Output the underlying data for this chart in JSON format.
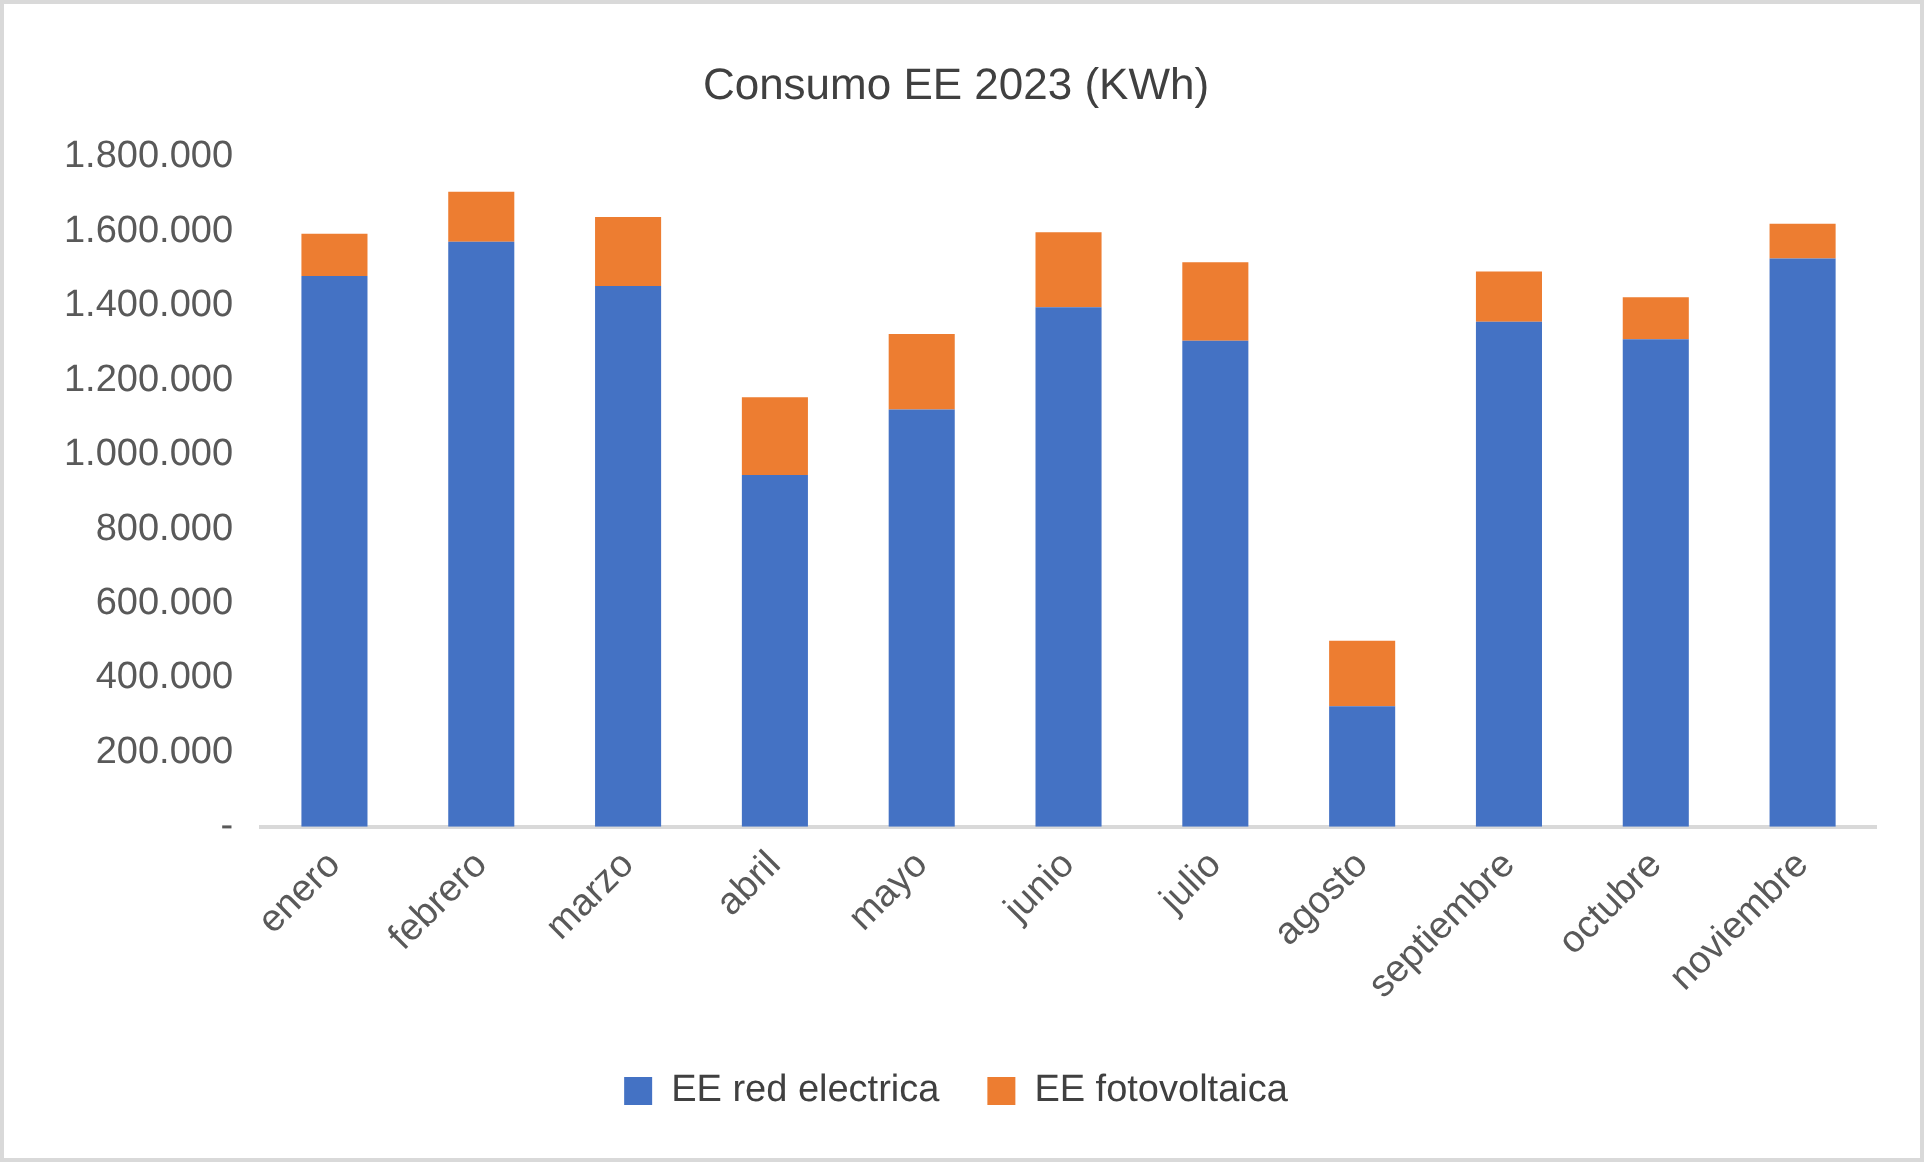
{
  "chart_data": {
    "type": "bar",
    "title": "Consumo EE 2023 (KWh)",
    "categories": [
      "enero",
      "febrero",
      "marzo",
      "abril",
      "mayo",
      "junio",
      "julio",
      "agosto",
      "septiembre",
      "octubre",
      "noviembre"
    ],
    "series": [
      {
        "name": "EE red electrica",
        "color": "#4472c4",
        "values": [
          1480000,
          1572000,
          1453000,
          945000,
          1121000,
          1396000,
          1306000,
          324000,
          1357000,
          1310000,
          1527000
        ]
      },
      {
        "name": "EE fotovoltaica",
        "color": "#ed7d31",
        "values": [
          113000,
          134000,
          185000,
          209000,
          203000,
          201000,
          211000,
          176000,
          135000,
          113000,
          93000
        ]
      }
    ],
    "stacked": true,
    "ylim": [
      0,
      1800000
    ],
    "yticks": [
      {
        "value": 0,
        "label": "-"
      },
      {
        "value": 200000,
        "label": "200.000"
      },
      {
        "value": 400000,
        "label": "400.000"
      },
      {
        "value": 600000,
        "label": "600.000"
      },
      {
        "value": 800000,
        "label": "800.000"
      },
      {
        "value": 1000000,
        "label": "1.000.000"
      },
      {
        "value": 1200000,
        "label": "1.200.000"
      },
      {
        "value": 1400000,
        "label": "1.400.000"
      },
      {
        "value": 1600000,
        "label": "1.600.000"
      },
      {
        "value": 1800000,
        "label": "1.800.000"
      }
    ],
    "grid": false,
    "legend": "bottom"
  }
}
